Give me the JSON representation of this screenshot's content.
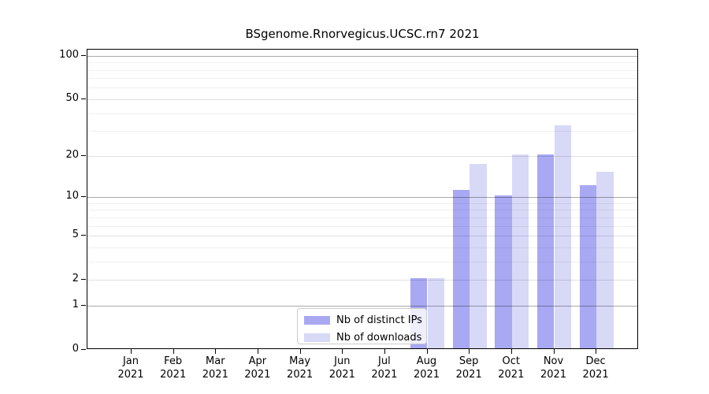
{
  "chart_data": {
    "type": "bar",
    "title": "BSgenome.Rnorvegicus.UCSC.rn7 2021",
    "categories": [
      "Jan",
      "Feb",
      "Mar",
      "Apr",
      "May",
      "Jun",
      "Jul",
      "Aug",
      "Sep",
      "Oct",
      "Nov",
      "Dec"
    ],
    "year_label": "2021",
    "series": [
      {
        "name": "Nb of distinct IPs",
        "color": "#a8a8f3",
        "values": [
          0,
          0,
          0,
          0,
          0,
          0,
          0,
          2,
          11,
          10,
          20,
          12
        ]
      },
      {
        "name": "Nb of downloads",
        "color": "#d8d8f7",
        "values": [
          0,
          0,
          0,
          0,
          0,
          0,
          0,
          2,
          17,
          20,
          32,
          15
        ]
      }
    ],
    "xlabel": "",
    "ylabel": "",
    "yscale": "log1p",
    "ylim": [
      0,
      110
    ],
    "yticks": [
      0,
      1,
      2,
      5,
      10,
      20,
      50,
      100
    ],
    "grid": {
      "on": true,
      "major_lines": [
        1,
        10,
        100
      ],
      "mid_lines": [
        2,
        5,
        20,
        50
      ],
      "minor_lines": [
        3,
        4,
        6,
        7,
        8,
        9,
        30,
        40,
        60,
        70,
        80,
        90
      ]
    },
    "legend": {
      "position": "lower center-left",
      "framed": true
    },
    "axis_color": "#000000",
    "grid_colors": {
      "major": "#aaaaaa",
      "mid": "#e0e0e0",
      "minor": "#f0f0f0"
    }
  }
}
